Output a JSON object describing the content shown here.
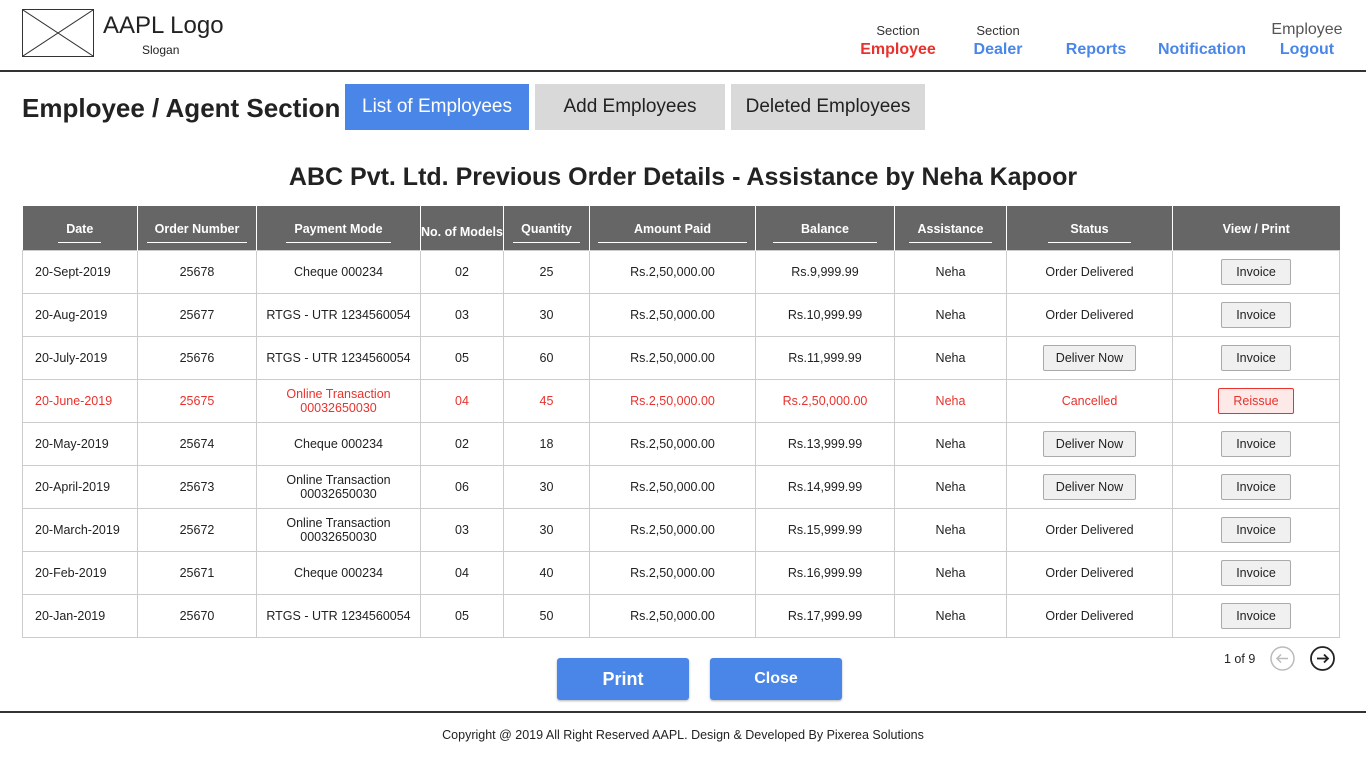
{
  "brand": {
    "logo": "AAPL Logo",
    "slogan": "Slogan"
  },
  "nav": {
    "employee": {
      "small": "Section",
      "label": "Employee"
    },
    "dealer": {
      "small": "Section",
      "label": "Dealer"
    },
    "reports": "Reports",
    "notification": "Notification",
    "user": {
      "role": "Employee",
      "logout": "Logout"
    }
  },
  "section_title": "Employee / Agent Section",
  "tabs": [
    "List of Employees",
    "Add Employees",
    "Deleted Employees"
  ],
  "order_title": "ABC Pvt. Ltd. Previous Order Details - Assistance by Neha Kapoor",
  "table": {
    "headers": [
      "Date",
      "Order Number",
      "Payment Mode",
      "No. of Models",
      "Quantity",
      "Amount Paid",
      "Balance",
      "Assistance",
      "Status",
      "View / Print"
    ],
    "rows": [
      {
        "date": "20-Sept-2019",
        "order": "25678",
        "payment": "Cheque 000234",
        "models": "02",
        "qty": "25",
        "amount": "Rs.2,50,000.00",
        "balance": "Rs.9,999.99",
        "assist": "Neha",
        "status": "Order Delivered",
        "status_type": "text",
        "action": "Invoice"
      },
      {
        "date": "20-Aug-2019",
        "order": "25677",
        "payment": "RTGS - UTR 1234560054",
        "models": "03",
        "qty": "30",
        "amount": "Rs.2,50,000.00",
        "balance": "Rs.10,999.99",
        "assist": "Neha",
        "status": "Order Delivered",
        "status_type": "text",
        "action": "Invoice"
      },
      {
        "date": "20-July-2019",
        "order": "25676",
        "payment": "RTGS - UTR 1234560054",
        "models": "05",
        "qty": "60",
        "amount": "Rs.2,50,000.00",
        "balance": "Rs.11,999.99",
        "assist": "Neha",
        "status": "Deliver Now",
        "status_type": "button",
        "action": "Invoice"
      },
      {
        "date": "20-June-2019",
        "order": "25675",
        "payment": "Online Transaction 00032650030",
        "models": "04",
        "qty": "45",
        "amount": "Rs.2,50,000.00",
        "balance": "Rs.2,50,000.00",
        "assist": "Neha",
        "status": "Cancelled",
        "status_type": "text",
        "action": "Reissue",
        "cancelled": true
      },
      {
        "date": "20-May-2019",
        "order": "25674",
        "payment": "Cheque 000234",
        "models": "02",
        "qty": "18",
        "amount": "Rs.2,50,000.00",
        "balance": "Rs.13,999.99",
        "assist": "Neha",
        "status": "Deliver Now",
        "status_type": "button",
        "action": "Invoice"
      },
      {
        "date": "20-April-2019",
        "order": "25673",
        "payment": "Online Transaction 00032650030",
        "models": "06",
        "qty": "30",
        "amount": "Rs.2,50,000.00",
        "balance": "Rs.14,999.99",
        "assist": "Neha",
        "status": "Deliver Now",
        "status_type": "button",
        "action": "Invoice"
      },
      {
        "date": "20-March-2019",
        "order": "25672",
        "payment": "Online Transaction 00032650030",
        "models": "03",
        "qty": "30",
        "amount": "Rs.2,50,000.00",
        "balance": "Rs.15,999.99",
        "assist": "Neha",
        "status": "Order Delivered",
        "status_type": "text",
        "action": "Invoice"
      },
      {
        "date": "20-Feb-2019",
        "order": "25671",
        "payment": "Cheque 000234",
        "models": "04",
        "qty": "40",
        "amount": "Rs.2,50,000.00",
        "balance": "Rs.16,999.99",
        "assist": "Neha",
        "status": "Order Delivered",
        "status_type": "text",
        "action": "Invoice"
      },
      {
        "date": "20-Jan-2019",
        "order": "25670",
        "payment": "RTGS - UTR 1234560054",
        "models": "05",
        "qty": "50",
        "amount": "Rs.2,50,000.00",
        "balance": "Rs.17,999.99",
        "assist": "Neha",
        "status": "Order Delivered",
        "status_type": "text",
        "action": "Invoice"
      }
    ]
  },
  "pager": {
    "text": "1 of 9",
    "prev_icon": "arrow-left-circle-icon",
    "next_icon": "arrow-right-circle-icon"
  },
  "actions": {
    "print": "Print",
    "close": "Close"
  },
  "footer": "Copyright @ 2019 All Right Reserved AAPL. Design & Developed By Pixerea Solutions",
  "colors": {
    "accent": "#4a86e8",
    "active": "#e8322d",
    "header_bg": "#666666",
    "tab_inactive": "#d9d9d9"
  }
}
